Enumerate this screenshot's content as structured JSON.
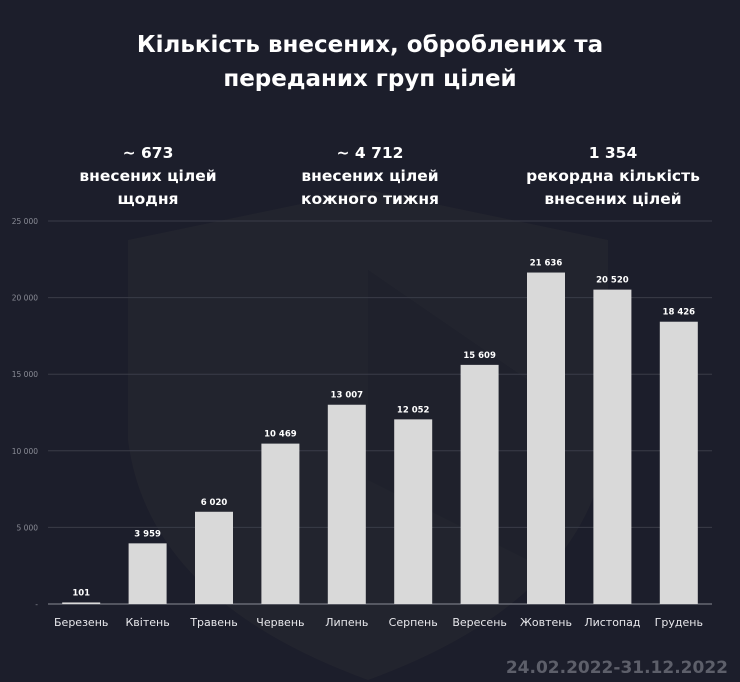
{
  "title_line1": "Кількість внесених, оброблених та",
  "title_line2": "переданих груп цілей",
  "stats": [
    {
      "value": "~ 673",
      "line2": "внесених цілей",
      "line3": "щодня"
    },
    {
      "value": "~ 4 712",
      "line2": "внесених цілей",
      "line3": "кожного тижня"
    },
    {
      "value": "1 354",
      "line2": "рекордна кількість",
      "line3": "внесених цілей"
    }
  ],
  "period": "24.02.2022-31.12.2022",
  "colors": {
    "background": "#1c1e2b",
    "bar": "#d9d9d9",
    "grid": "#3a3c48"
  },
  "chart_data": {
    "type": "bar",
    "categories": [
      "Березень",
      "Квітень",
      "Травень",
      "Червень",
      "Липень",
      "Серпень",
      "Вересень",
      "Жовтень",
      "Листопад",
      "Грудень"
    ],
    "values": [
      101,
      3959,
      6020,
      10469,
      13007,
      12052,
      15609,
      21636,
      20520,
      18426
    ],
    "data_labels": [
      "101",
      "3 959",
      "6 020",
      "10 469",
      "13 007",
      "12 052",
      "15 609",
      "21 636",
      "20 520",
      "18 426"
    ],
    "ylim": [
      0,
      25000
    ],
    "yticks": [
      0,
      5000,
      10000,
      15000,
      20000,
      25000
    ],
    "ytick_labels": [
      "-",
      "5 000",
      "10 000",
      "15 000",
      "20 000",
      "25 000"
    ],
    "grid": true,
    "title": "Кількість внесених, оброблених та переданих груп цілей"
  }
}
